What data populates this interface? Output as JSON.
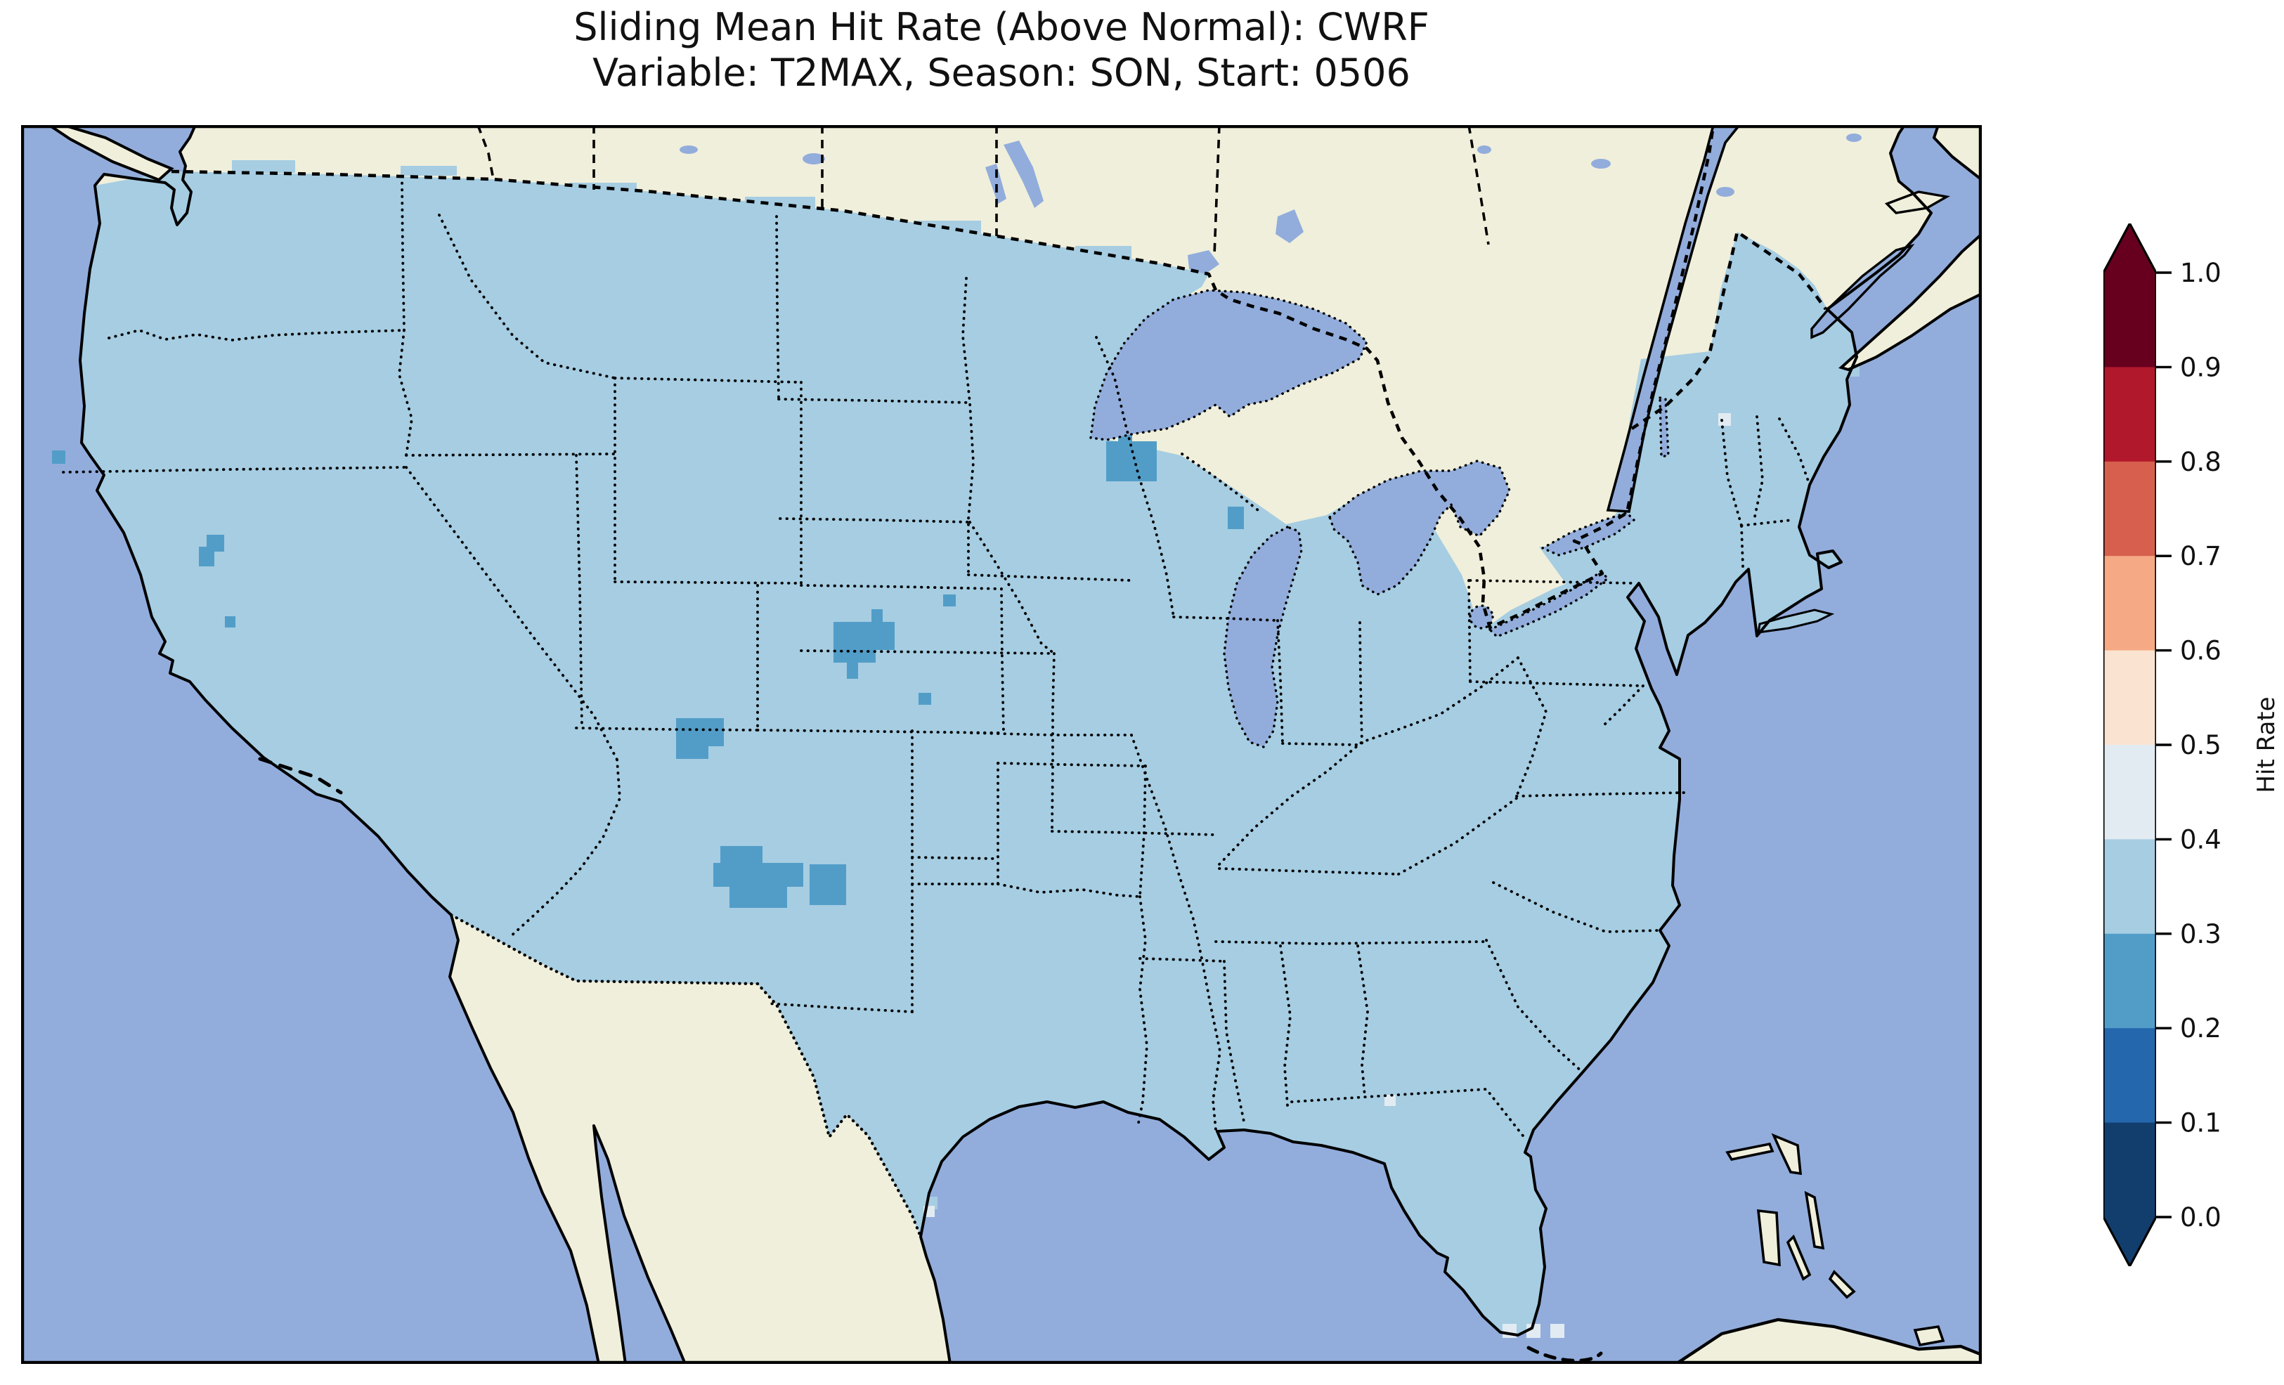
{
  "figure": {
    "title_line1": "Sliding Mean Hit Rate (Above Normal): CWRF",
    "title_line2": "Variable: T2MAX, Season: SON, Start: 0506"
  },
  "colorbar": {
    "label": "Hit Rate",
    "ticks": [
      "1.0",
      "0.9",
      "0.8",
      "0.7",
      "0.6",
      "0.5",
      "0.4",
      "0.3",
      "0.2",
      "0.1",
      "0.0"
    ],
    "segments_top_to_bottom": [
      {
        "range": "0.9-1.0",
        "color": "#67001f"
      },
      {
        "range": "0.8-0.9",
        "color": "#b2182b"
      },
      {
        "range": "0.7-0.8",
        "color": "#d6604d"
      },
      {
        "range": "0.6-0.7",
        "color": "#f5a984"
      },
      {
        "range": "0.5-0.6",
        "color": "#fbe3d1"
      },
      {
        "range": "0.4-0.5",
        "color": "#e2ebf2"
      },
      {
        "range": "0.3-0.4",
        "color": "#a6cde2"
      },
      {
        "range": "0.2-0.3",
        "color": "#529dc8"
      },
      {
        "range": "0.1-0.2",
        "color": "#2467ac"
      },
      {
        "range": "0.0-0.1",
        "color": "#123e6e"
      }
    ],
    "over_arrow_color": "#67001f",
    "under_arrow_color": "#123e6e"
  },
  "map": {
    "ocean_color": "#92addc",
    "land_color": "#f0efdb",
    "us_fill_color": "#a6cde2",
    "cells": {
      "hit_02_03": {
        "color": "#529dc8",
        "rects": [
          [
            253,
            600,
            22,
            28
          ],
          [
            264,
            583,
            25,
            24
          ],
          [
            290,
            699,
            15,
            16
          ],
          [
            44,
            463,
            19,
            19
          ],
          [
            1156,
            707,
            87,
            40
          ],
          [
            1156,
            747,
            60,
            18
          ],
          [
            1210,
            689,
            16,
            18
          ],
          [
            1175,
            765,
            16,
            23
          ],
          [
            1312,
            668,
            18,
            17
          ],
          [
            1277,
            808,
            18,
            17
          ],
          [
            932,
            844,
            68,
            40
          ],
          [
            932,
            884,
            46,
            18
          ],
          [
            995,
            1026,
            60,
            26
          ],
          [
            985,
            1050,
            128,
            34
          ],
          [
            1008,
            1084,
            82,
            30
          ],
          [
            1122,
            1052,
            52,
            58
          ],
          [
            1578,
            353,
            21,
            21
          ],
          [
            1547,
            376,
            22,
            38
          ],
          [
            1561,
            414,
            20,
            36
          ],
          [
            1544,
            450,
            72,
            57
          ],
          [
            1717,
            543,
            23,
            32
          ]
        ]
      },
      "hit_04_05": {
        "color": "#e2ebf2",
        "rects": [
          [
            2108,
            1706,
            20,
            20
          ],
          [
            2142,
            1706,
            20,
            20
          ],
          [
            2176,
            1706,
            20,
            20
          ],
          [
            2415,
            410,
            18,
            18
          ],
          [
            1284,
            1538,
            16,
            16
          ],
          [
            1940,
            1380,
            16,
            16
          ]
        ]
      }
    }
  },
  "chart_data": {
    "type": "heatmap",
    "title": "Sliding Mean Hit Rate (Above Normal): CWRF",
    "subtitle": "Variable: T2MAX, Season: SON, Start: 0506",
    "model": "CWRF",
    "variable": "T2MAX",
    "season": "SON",
    "start": "0506",
    "metric": "Hit Rate (Above Normal)",
    "region": "Contiguous United States (CONUS)",
    "colorbar_label": "Hit Rate",
    "colorbar_ticks": [
      0.0,
      0.1,
      0.2,
      0.3,
      0.4,
      0.5,
      0.6,
      0.7,
      0.8,
      0.9,
      1.0
    ],
    "colorbar_range": [
      0.0,
      1.0
    ],
    "colorbar_extend": "both",
    "bins": [
      {
        "range": [
          0.0,
          0.1
        ],
        "color": "#123e6e"
      },
      {
        "range": [
          0.1,
          0.2
        ],
        "color": "#2467ac"
      },
      {
        "range": [
          0.2,
          0.3
        ],
        "color": "#529dc8"
      },
      {
        "range": [
          0.3,
          0.4
        ],
        "color": "#a6cde2"
      },
      {
        "range": [
          0.4,
          0.5
        ],
        "color": "#e2ebf2"
      },
      {
        "range": [
          0.5,
          0.6
        ],
        "color": "#fbe3d1"
      },
      {
        "range": [
          0.6,
          0.7
        ],
        "color": "#f5a984"
      },
      {
        "range": [
          0.7,
          0.8
        ],
        "color": "#d6604d"
      },
      {
        "range": [
          0.8,
          0.9
        ],
        "color": "#b2182b"
      },
      {
        "range": [
          0.9,
          1.0
        ],
        "color": "#67001f"
      }
    ],
    "dominant_value_bin": [
      0.3,
      0.4
    ],
    "coverage_note": "Nearly the entire CONUS grid is in the 0.3-0.4 hit-rate bin (light blue)",
    "anomaly_regions": [
      {
        "bin": [
          0.2,
          0.3
        ],
        "location": "northwest Nevada (small L-shaped cluster + isolated cell)"
      },
      {
        "bin": [
          0.2,
          0.3
        ],
        "location": "northern California coast (single cell)"
      },
      {
        "bin": [
          0.2,
          0.3
        ],
        "location": "South Dakota / Nebraska border cluster + two isolated Nebraska cells"
      },
      {
        "bin": [
          0.2,
          0.3
        ],
        "location": "eastern Utah cluster"
      },
      {
        "bin": [
          0.2,
          0.3
        ],
        "location": "eastern New Mexico / Texas border staircase cluster"
      },
      {
        "bin": [
          0.2,
          0.3
        ],
        "location": "northeast Minnesota / northwest Wisconsin staircase cluster near Lake Superior"
      },
      {
        "bin": [
          0.2,
          0.3
        ],
        "location": "single cell near Lake Michigan shore (Wisconsin/Michigan)"
      },
      {
        "bin": [
          0.4,
          0.5
        ],
        "location": "three offshore cells southwest of the Florida Keys"
      },
      {
        "bin": [
          0.4,
          0.5
        ],
        "location": "a few scattered coastal cells (Maine, Texas, Florida coasts)"
      }
    ]
  }
}
